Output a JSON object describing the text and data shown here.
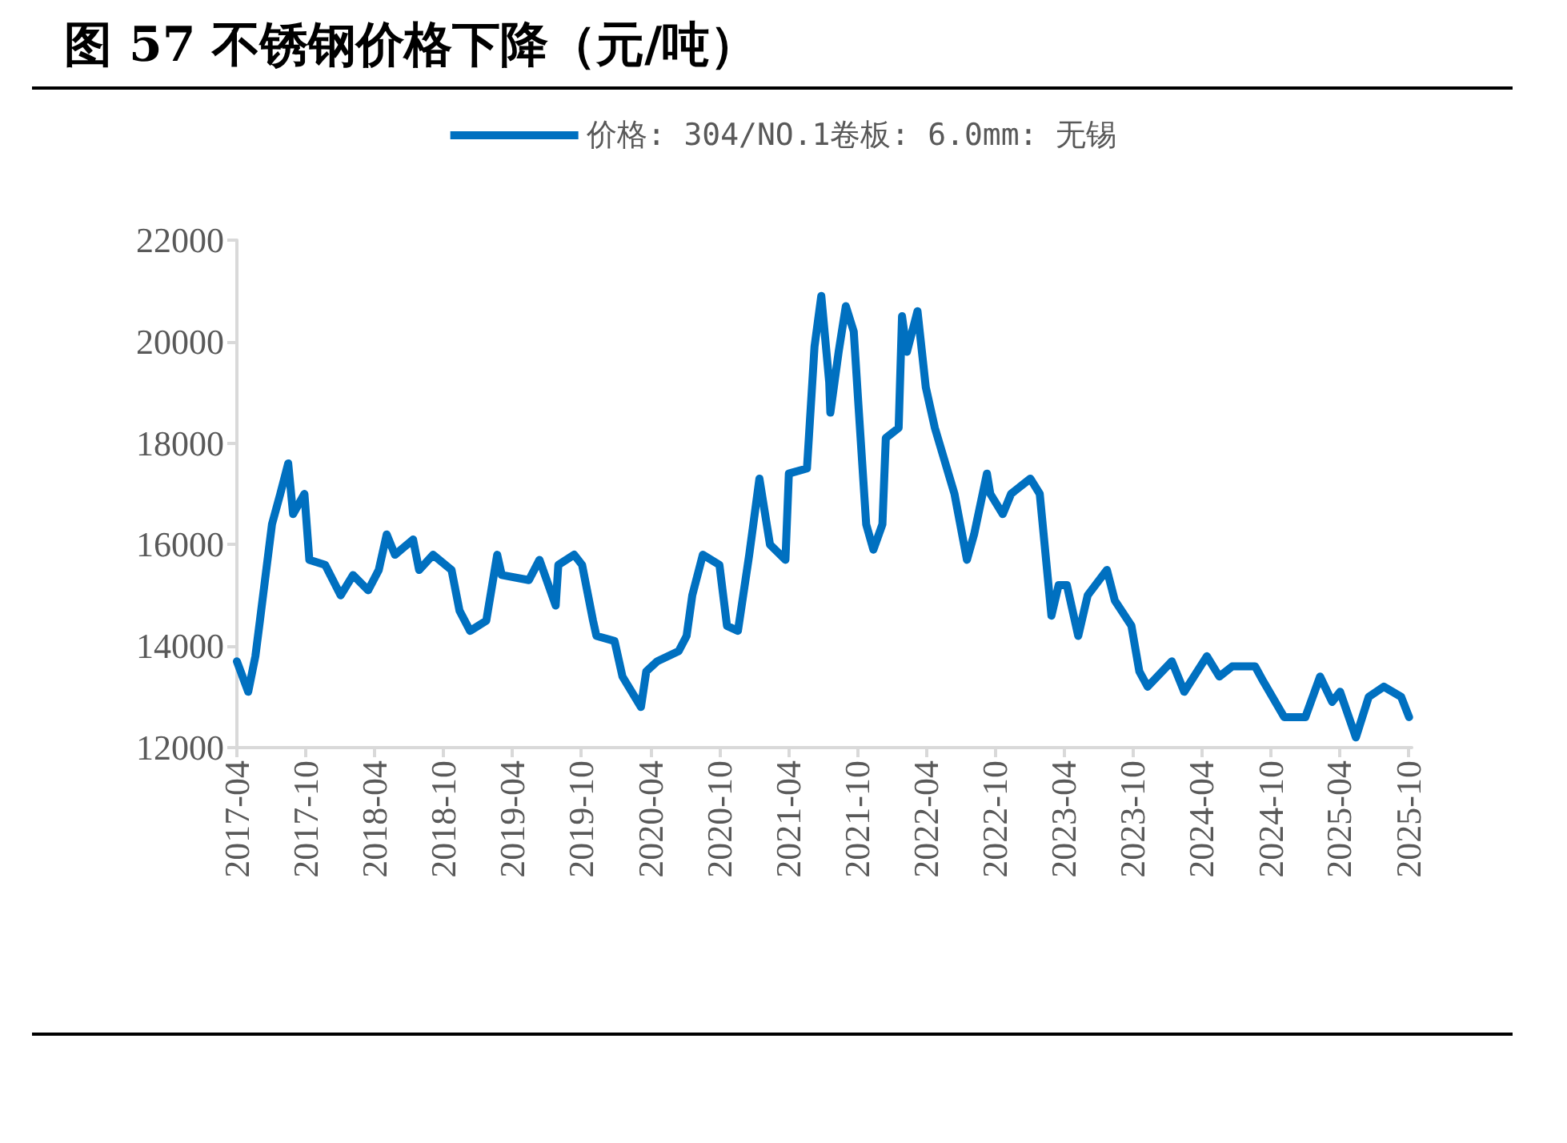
{
  "chart_data": {
    "type": "line",
    "title": "图 57  不锈钢价格下降（元/吨）",
    "xlim": [
      "2017-04-01",
      "2025-10-10"
    ],
    "xticks": [
      "2017-04",
      "2017-10",
      "2018-04",
      "2018-10",
      "2019-04",
      "2019-10",
      "2020-04",
      "2020-10",
      "2021-04",
      "2021-10",
      "2022-04",
      "2022-10",
      "2023-04",
      "2023-10",
      "2024-04",
      "2024-10",
      "2025-04",
      "2025-10"
    ],
    "ylim": [
      12000,
      22000
    ],
    "yticks": [
      12000,
      14000,
      16000,
      18000,
      20000,
      22000
    ],
    "grid": false,
    "legend": "top",
    "marker": "none",
    "line_style": "solid",
    "series": [
      {
        "name": "价格: 304/NO.1卷板: 6.0mm: 无锡",
        "color": "#0070c0",
        "x": [
          "2017-04-01",
          "2017-05-01",
          "2017-05-20",
          "2017-06-01",
          "2017-07-03",
          "2017-07-25",
          "2017-08-15",
          "2017-08-28",
          "2017-09-27",
          "2017-10-10",
          "2017-11-21",
          "2018-01-01",
          "2018-02-03",
          "2018-03-15",
          "2018-04-12",
          "2018-05-03",
          "2018-05-25",
          "2018-07-12",
          "2018-07-28",
          "2018-09-03",
          "2018-10-22",
          "2018-11-12",
          "2018-12-10",
          "2019-01-22",
          "2019-02-20",
          "2019-03-04",
          "2019-05-15",
          "2019-06-12",
          "2019-07-25",
          "2019-08-01",
          "2019-09-12",
          "2019-10-03",
          "2019-11-01",
          "2019-11-10",
          "2019-12-28",
          "2020-01-18",
          "2020-03-07",
          "2020-03-21",
          "2020-04-19",
          "2020-06-15",
          "2020-07-06",
          "2020-07-21",
          "2020-08-18",
          "2020-10-01",
          "2020-10-21",
          "2020-11-19",
          "2020-12-19",
          "2021-01-15",
          "2021-02-12",
          "2021-03-25",
          "2021-04-03",
          "2021-05-21",
          "2021-06-10",
          "2021-06-28",
          "2021-07-19",
          "2021-07-22",
          "2021-08-13",
          "2021-09-01",
          "2021-09-22",
          "2021-10-04",
          "2021-10-25",
          "2021-11-13",
          "2021-12-07",
          "2021-12-16",
          "2022-01-19",
          "2022-01-28",
          "2022-02-10",
          "2022-03-10",
          "2022-04-01",
          "2022-04-25",
          "2022-06-16",
          "2022-07-19",
          "2022-08-07",
          "2022-09-10",
          "2022-09-19",
          "2022-10-22",
          "2022-11-13",
          "2023-01-03",
          "2023-01-28",
          "2023-02-28",
          "2023-03-19",
          "2023-04-10",
          "2023-05-10",
          "2023-06-04",
          "2023-07-25",
          "2023-08-15",
          "2023-09-28",
          "2023-10-19",
          "2023-11-10",
          "2024-01-13",
          "2024-02-15",
          "2024-04-15",
          "2024-05-18",
          "2024-06-21",
          "2024-08-21",
          "2024-09-12",
          "2024-11-06",
          "2025-01-01",
          "2025-02-09",
          "2025-03-13",
          "2025-04-03",
          "2025-05-15",
          "2025-06-18",
          "2025-07-28",
          "2025-09-12",
          "2025-10-03"
        ],
        "values": [
          13700,
          13100,
          13800,
          14500,
          16400,
          17000,
          17600,
          16600,
          17000,
          15700,
          15600,
          15000,
          15400,
          15100,
          15500,
          16200,
          15800,
          16100,
          15500,
          15800,
          15500,
          14700,
          14300,
          14500,
          15800,
          15400,
          15300,
          15700,
          14800,
          15600,
          15800,
          15600,
          14500,
          14200,
          14100,
          13400,
          12800,
          13500,
          13700,
          13900,
          14200,
          15000,
          15800,
          15600,
          14400,
          14300,
          15800,
          17300,
          16000,
          15700,
          17400,
          17500,
          19900,
          20900,
          19200,
          18600,
          19800,
          20700,
          20200,
          18800,
          16400,
          15900,
          16400,
          18100,
          18300,
          20500,
          19800,
          20600,
          19100,
          18300,
          17000,
          15700,
          16200,
          17400,
          17000,
          16600,
          17000,
          17300,
          17000,
          14600,
          15200,
          15200,
          14200,
          15000,
          15500,
          14900,
          14400,
          13500,
          13200,
          13700,
          13100,
          13800,
          13400,
          13600,
          13600,
          13300,
          12600,
          12600,
          13400,
          12900,
          13100,
          12200,
          13000,
          13200,
          13000,
          12600
        ]
      }
    ]
  }
}
